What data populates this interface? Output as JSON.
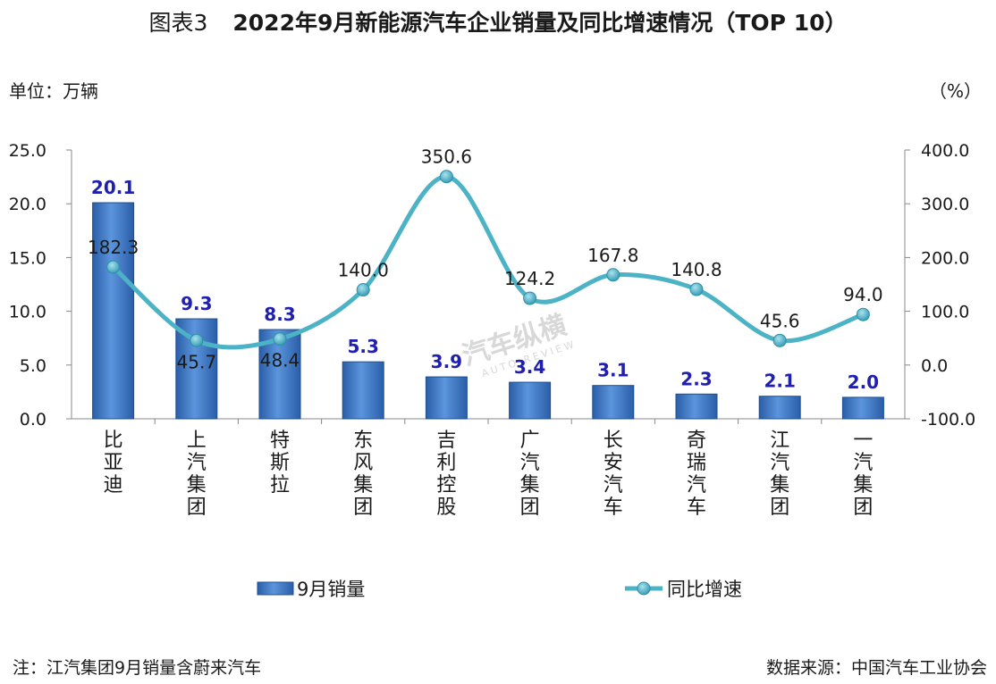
{
  "title_prefix": "图表3",
  "title": "2022年9月新能源汽车企业销量及同比增速情况（TOP 10）",
  "unit_left": "单位：万辆",
  "unit_right": "（%）",
  "note": "注：江汽集团9月销量含蔚来汽车",
  "source": "数据来源：中国汽车工业协会",
  "watermark": {
    "text": "汽车纵横",
    "subtext": "AUTO REVIEW"
  },
  "colors": {
    "bar": "#3f78c4",
    "line": "#4cb2c6",
    "marker": "#3aa7bf",
    "bar_label": "#1f1fb0"
  },
  "chart_data": {
    "type": "bar",
    "categories": [
      "比亚迪",
      "上汽集团",
      "特斯拉",
      "东风集团",
      "吉利控股",
      "广汽集团",
      "长安汽车",
      "奇瑞汽车",
      "江汽集团",
      "一汽集团"
    ],
    "series": [
      {
        "name": "9月销量",
        "type": "bar",
        "axis": "left",
        "values": [
          20.1,
          9.3,
          8.3,
          5.3,
          3.9,
          3.4,
          3.1,
          2.3,
          2.1,
          2.0
        ],
        "labels": [
          "20.1",
          "9.3",
          "8.3",
          "5.3",
          "3.9",
          "3.4",
          "3.1",
          "2.3",
          "2.1",
          "2.0"
        ]
      },
      {
        "name": "同比增速",
        "type": "line",
        "axis": "right",
        "values": [
          182.3,
          45.7,
          48.4,
          140.0,
          350.6,
          124.2,
          167.8,
          140.8,
          45.6,
          94.0
        ],
        "labels": [
          "182.3",
          "45.7",
          "48.4",
          "140.0",
          "350.6",
          "124.2",
          "167.8",
          "140.8",
          "45.6",
          "94.0"
        ]
      }
    ],
    "y_left": {
      "range": [
        0,
        25
      ],
      "ticks": [
        "0.0",
        "5.0",
        "10.0",
        "15.0",
        "20.0",
        "25.0"
      ]
    },
    "y_right": {
      "range": [
        -100,
        400
      ],
      "ticks": [
        "-100.0",
        "0.0",
        "100.0",
        "200.0",
        "300.0",
        "400.0"
      ]
    },
    "legend": {
      "position": "bottom",
      "items": [
        "9月销量",
        "同比增速"
      ]
    },
    "grid": false
  }
}
